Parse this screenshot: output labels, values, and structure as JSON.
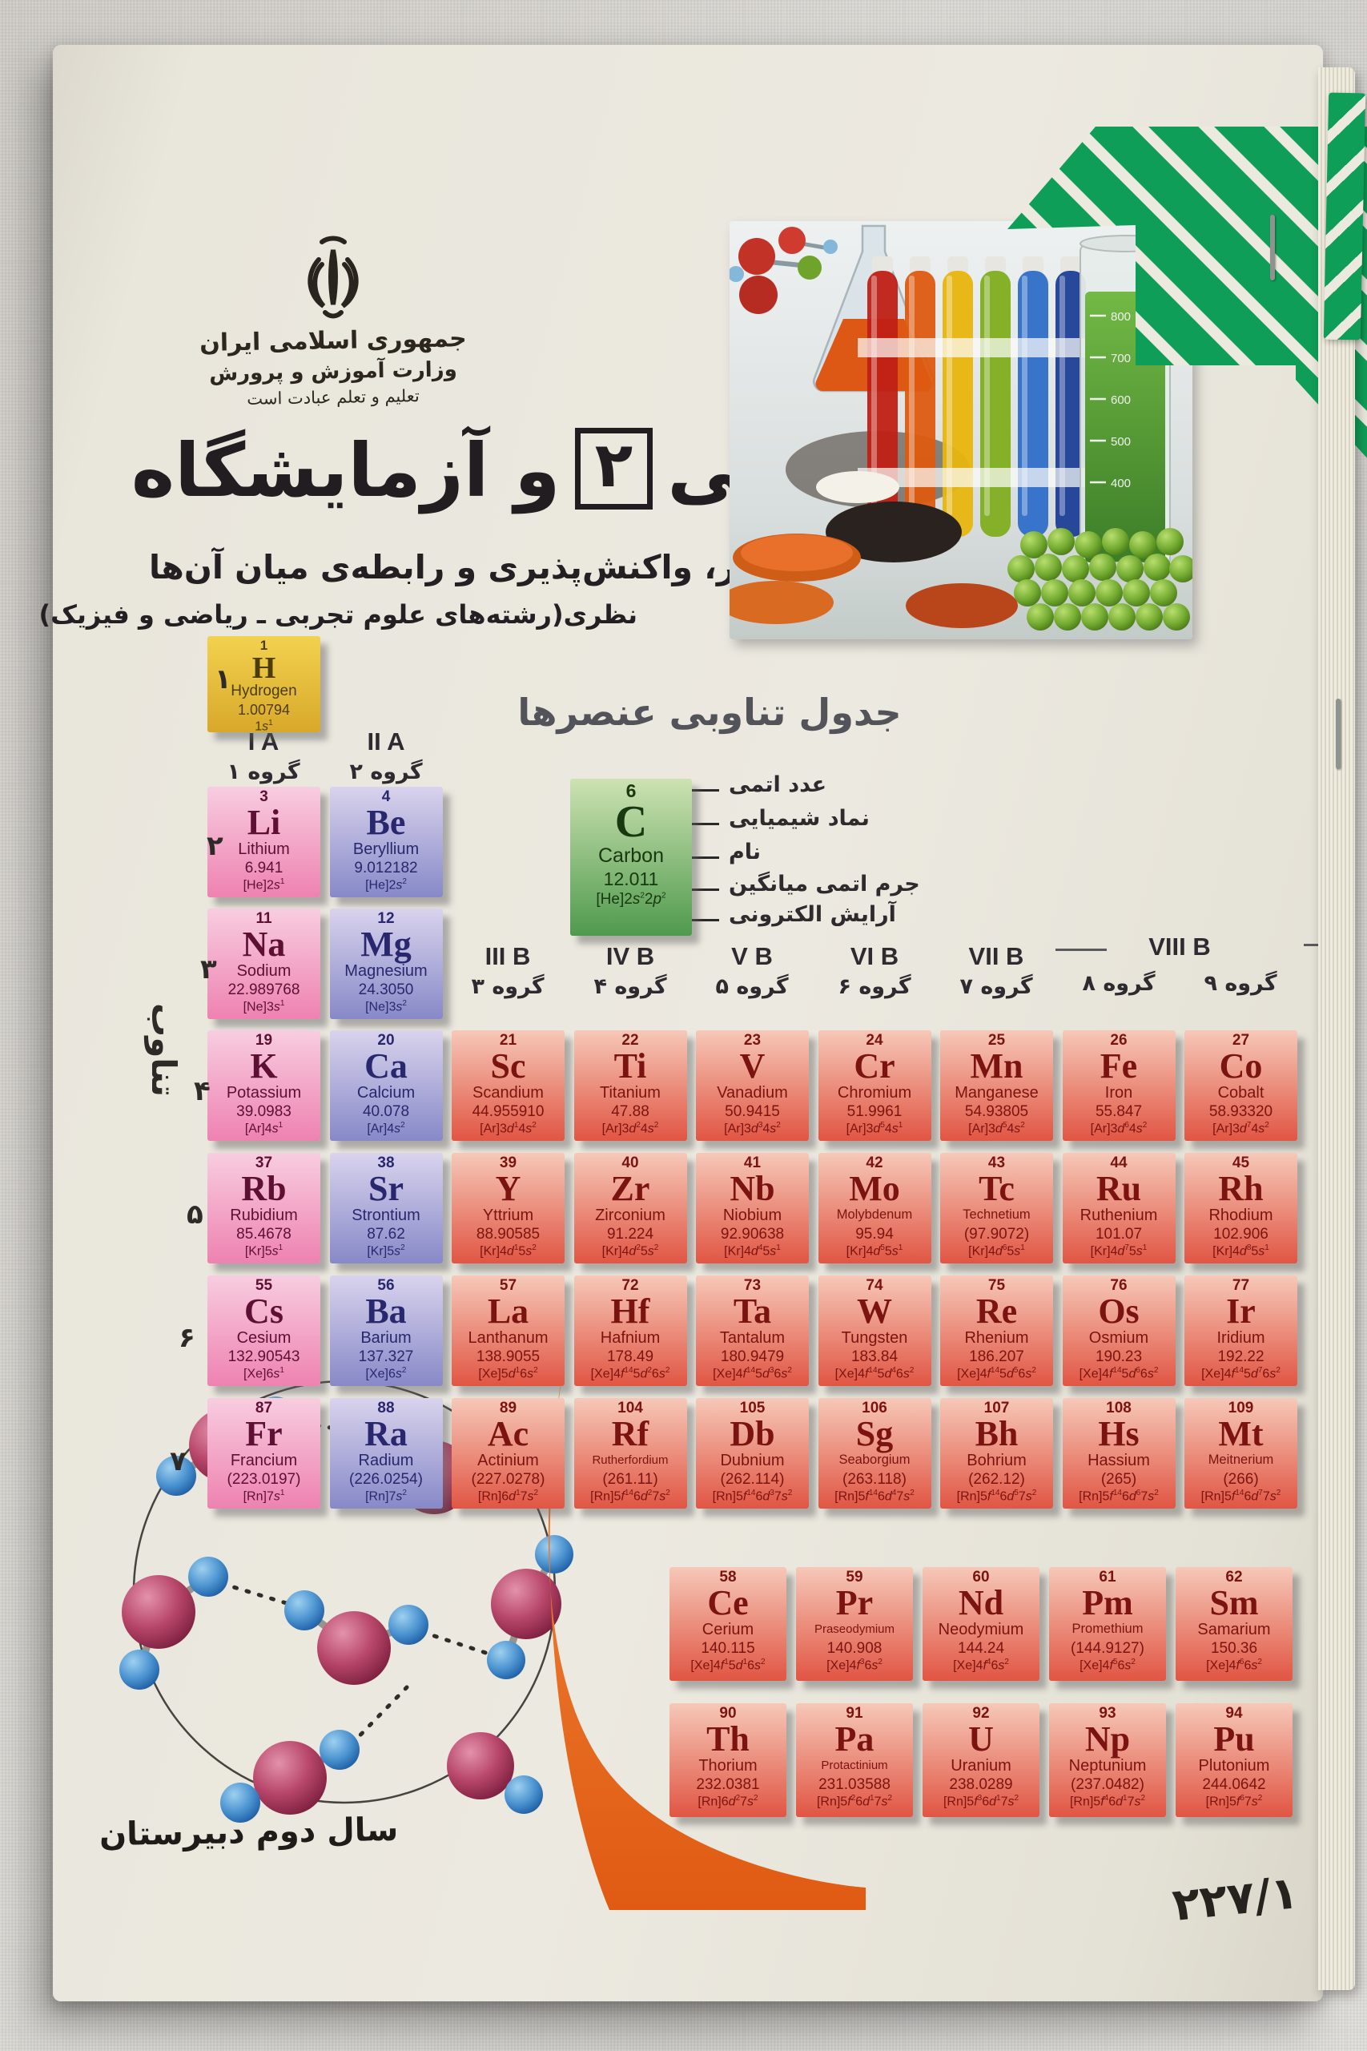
{
  "page": {
    "header_lines": [
      "جمهوری اسلامی ایران",
      "وزارت آموزش و پرورش",
      "تعلیم و تعلم عبادت است"
    ],
    "title": {
      "word1": "شیمی",
      "number": "۲",
      "word2": "و آزمایشگاه"
    },
    "subtitle": "ساختار، واکنش‌پذیری و رابطه‌ی میان آن‌ها",
    "stream_note": "نظری(رشته‌های علوم تجربی ـ ریاضی و فیزیک)",
    "table_title": "جدول تناوبی عنصرها",
    "period_label": "تناوب",
    "footer_left": "سال دوم دبیرستان",
    "book_code": "۲۲۷/۱"
  },
  "group_headers": {
    "ia": {
      "en": "I A",
      "fa": "گروه ۱"
    },
    "iia": {
      "en": "II A",
      "fa": "گروه ۲"
    },
    "iiib": {
      "en": "III B",
      "fa": "گروه ۳"
    },
    "ivb": {
      "en": "IV B",
      "fa": "گروه ۴"
    },
    "vb": {
      "en": "V B",
      "fa": "گروه ۵"
    },
    "vib": {
      "en": "VI B",
      "fa": "گروه ۶"
    },
    "viib": {
      "en": "VII B",
      "fa": "گروه ۷"
    },
    "viiib": {
      "en": "VIII B",
      "fa8": "گروه ۸",
      "fa9": "گروه ۹"
    }
  },
  "period_numbers": [
    "۱",
    "۲",
    "۳",
    "۴",
    "۵",
    "۶",
    "۷"
  ],
  "legend": {
    "labels": [
      "عدد اتمی",
      "نماد شیمیایی",
      "نام",
      "جرم اتمی میانگین",
      "آرایش الکترونی"
    ],
    "element": [
      "6",
      "C",
      "Carbon",
      "12.011",
      "[He]2s^{2}2p^{2}",
      "g"
    ]
  },
  "element_fields": [
    "atomic_number",
    "symbol",
    "name",
    "mass",
    "config",
    "type",
    "row",
    "col"
  ],
  "elements": {
    "main": [
      [
        "1",
        "H",
        "Hydrogen",
        "1.00794",
        "1s^{1}",
        "h",
        0,
        0
      ],
      [
        "3",
        "Li",
        "Lithium",
        "6.941",
        "[He]2s^{1}",
        "a",
        1,
        0
      ],
      [
        "4",
        "Be",
        "Beryllium",
        "9.012182",
        "[He]2s^{2}",
        "e",
        1,
        1
      ],
      [
        "11",
        "Na",
        "Sodium",
        "22.989768",
        "[Ne]3s^{1}",
        "a",
        2,
        0
      ],
      [
        "12",
        "Mg",
        "Magnesium",
        "24.3050",
        "[Ne]3s^{2}",
        "e",
        2,
        1
      ],
      [
        "19",
        "K",
        "Potassium",
        "39.0983",
        "[Ar]4s^{1}",
        "a",
        3,
        0
      ],
      [
        "20",
        "Ca",
        "Calcium",
        "40.078",
        "[Ar]4s^{2}",
        "e",
        3,
        1
      ],
      [
        "21",
        "Sc",
        "Scandium",
        "44.955910",
        "[Ar]3d^{1}4s^{2}",
        "t",
        3,
        2
      ],
      [
        "22",
        "Ti",
        "Titanium",
        "47.88",
        "[Ar]3d^{2}4s^{2}",
        "t",
        3,
        3
      ],
      [
        "23",
        "V",
        "Vanadium",
        "50.9415",
        "[Ar]3d^{3}4s^{2}",
        "t",
        3,
        4
      ],
      [
        "24",
        "Cr",
        "Chromium",
        "51.9961",
        "[Ar]3d^{5}4s^{1}",
        "t",
        3,
        5
      ],
      [
        "25",
        "Mn",
        "Manganese",
        "54.93805",
        "[Ar]3d^{5}4s^{2}",
        "t",
        3,
        6
      ],
      [
        "26",
        "Fe",
        "Iron",
        "55.847",
        "[Ar]3d^{6}4s^{2}",
        "t",
        3,
        7
      ],
      [
        "27",
        "Co",
        "Cobalt",
        "58.93320",
        "[Ar]3d^{7}4s^{2}",
        "t",
        3,
        8
      ],
      [
        "37",
        "Rb",
        "Rubidium",
        "85.4678",
        "[Kr]5s^{1}",
        "a",
        4,
        0
      ],
      [
        "38",
        "Sr",
        "Strontium",
        "87.62",
        "[Kr]5s^{2}",
        "e",
        4,
        1
      ],
      [
        "39",
        "Y",
        "Yttrium",
        "88.90585",
        "[Kr]4d^{1}5s^{2}",
        "t",
        4,
        2
      ],
      [
        "40",
        "Zr",
        "Zirconium",
        "91.224",
        "[Kr]4d^{2}5s^{2}",
        "t",
        4,
        3
      ],
      [
        "41",
        "Nb",
        "Niobium",
        "92.90638",
        "[Kr]4d^{4}5s^{1}",
        "t",
        4,
        4
      ],
      [
        "42",
        "Mo",
        "Molybdenum",
        "95.94",
        "[Kr]4d^{5}5s^{1}",
        "t",
        4,
        5
      ],
      [
        "43",
        "Tc",
        "Technetium",
        "(97.9072)",
        "[Kr]4d^{6}5s^{1}",
        "t",
        4,
        6
      ],
      [
        "44",
        "Ru",
        "Ruthenium",
        "101.07",
        "[Kr]4d^{7}5s^{1}",
        "t",
        4,
        7
      ],
      [
        "45",
        "Rh",
        "Rhodium",
        "102.906",
        "[Kr]4d^{8}5s^{1}",
        "t",
        4,
        8
      ],
      [
        "55",
        "Cs",
        "Cesium",
        "132.90543",
        "[Xe]6s^{1}",
        "a",
        5,
        0
      ],
      [
        "56",
        "Ba",
        "Barium",
        "137.327",
        "[Xe]6s^{2}",
        "e",
        5,
        1
      ],
      [
        "57",
        "La",
        "Lanthanum",
        "138.9055",
        "[Xe]5d^{1}6s^{2}",
        "t",
        5,
        2
      ],
      [
        "72",
        "Hf",
        "Hafnium",
        "178.49",
        "[Xe]4f^{14}5d^{2}6s^{2}",
        "t",
        5,
        3
      ],
      [
        "73",
        "Ta",
        "Tantalum",
        "180.9479",
        "[Xe]4f^{14}5d^{3}6s^{2}",
        "t",
        5,
        4
      ],
      [
        "74",
        "W",
        "Tungsten",
        "183.84",
        "[Xe]4f^{14}5d^{4}6s^{2}",
        "t",
        5,
        5
      ],
      [
        "75",
        "Re",
        "Rhenium",
        "186.207",
        "[Xe]4f^{14}5d^{5}6s^{2}",
        "t",
        5,
        6
      ],
      [
        "76",
        "Os",
        "Osmium",
        "190.23",
        "[Xe]4f^{14}5d^{6}6s^{2}",
        "t",
        5,
        7
      ],
      [
        "77",
        "Ir",
        "Iridium",
        "192.22",
        "[Xe]4f^{14}5d^{7}6s^{2}",
        "t",
        5,
        8
      ],
      [
        "87",
        "Fr",
        "Francium",
        "(223.0197)",
        "[Rn]7s^{1}",
        "a",
        6,
        0
      ],
      [
        "88",
        "Ra",
        "Radium",
        "(226.0254)",
        "[Rn]7s^{2}",
        "e",
        6,
        1
      ],
      [
        "89",
        "Ac",
        "Actinium",
        "(227.0278)",
        "[Rn]6d^{1}7s^{2}",
        "t",
        6,
        2
      ],
      [
        "104",
        "Rf",
        "Rutherfordium",
        "(261.11)",
        "[Rn]5f^{14}6d^{2}7s^{2}",
        "t",
        6,
        3
      ],
      [
        "105",
        "Db",
        "Dubnium",
        "(262.114)",
        "[Rn]5f^{14}6d^{3}7s^{2}",
        "t",
        6,
        4
      ],
      [
        "106",
        "Sg",
        "Seaborgium",
        "(263.118)",
        "[Rn]5f^{14}6d^{4}7s^{2}",
        "t",
        6,
        5
      ],
      [
        "107",
        "Bh",
        "Bohrium",
        "(262.12)",
        "[Rn]5f^{14}6d^{5}7s^{2}",
        "t",
        6,
        6
      ],
      [
        "108",
        "Hs",
        "Hassium",
        "(265)",
        "[Rn]5f^{14}6d^{6}7s^{2}",
        "t",
        6,
        7
      ],
      [
        "109",
        "Mt",
        "Meitnerium",
        "(266)",
        "[Rn]5f^{14}6d^{7}7s^{2}",
        "t",
        6,
        8
      ]
    ],
    "lanthanides": [
      [
        "58",
        "Ce",
        "Cerium",
        "140.115",
        "[Xe]4f^{1}5d^{1}6s^{2}",
        "t",
        0
      ],
      [
        "59",
        "Pr",
        "Praseodymium",
        "140.908",
        "[Xe]4f^{3}6s^{2}",
        "t",
        1
      ],
      [
        "60",
        "Nd",
        "Neodymium",
        "144.24",
        "[Xe]4f^{4}6s^{2}",
        "t",
        2
      ],
      [
        "61",
        "Pm",
        "Promethium",
        "(144.9127)",
        "[Xe]4f^{5}6s^{2}",
        "t",
        3
      ],
      [
        "62",
        "Sm",
        "Samarium",
        "150.36",
        "[Xe]4f^{6}6s^{2}",
        "t",
        4
      ]
    ],
    "actinides": [
      [
        "90",
        "Th",
        "Thorium",
        "232.0381",
        "[Rn]6d^{2}7s^{2}",
        "t",
        0
      ],
      [
        "91",
        "Pa",
        "Protactinium",
        "231.03588",
        "[Rn]5f^{2}6d^{1}7s^{2}",
        "t",
        1
      ],
      [
        "92",
        "U",
        "Uranium",
        "238.0289",
        "[Rn]5f^{3}6d^{1}7s^{2}",
        "t",
        2
      ],
      [
        "93",
        "Np",
        "Neptunium",
        "(237.0482)",
        "[Rn]5f^{4}6d^{1}7s^{2}",
        "t",
        3
      ],
      [
        "94",
        "Pu",
        "Plutonium",
        "244.0642",
        "[Rn]5f^{6}7s^{2}",
        "t",
        4
      ]
    ]
  },
  "photo": {
    "cylinder_ticks": [
      "800",
      "700",
      "600",
      "500",
      "400"
    ]
  },
  "colors": {
    "green_corner": "#0f9e58",
    "alkali_pink": "#ee82b0",
    "alkaline_purple": "#8789c8",
    "transition_red": "#e15543",
    "hydrogen_gold": "#d8a82a",
    "carbon_green": "#4f9a4e",
    "orange_blob": "#e85d14"
  }
}
